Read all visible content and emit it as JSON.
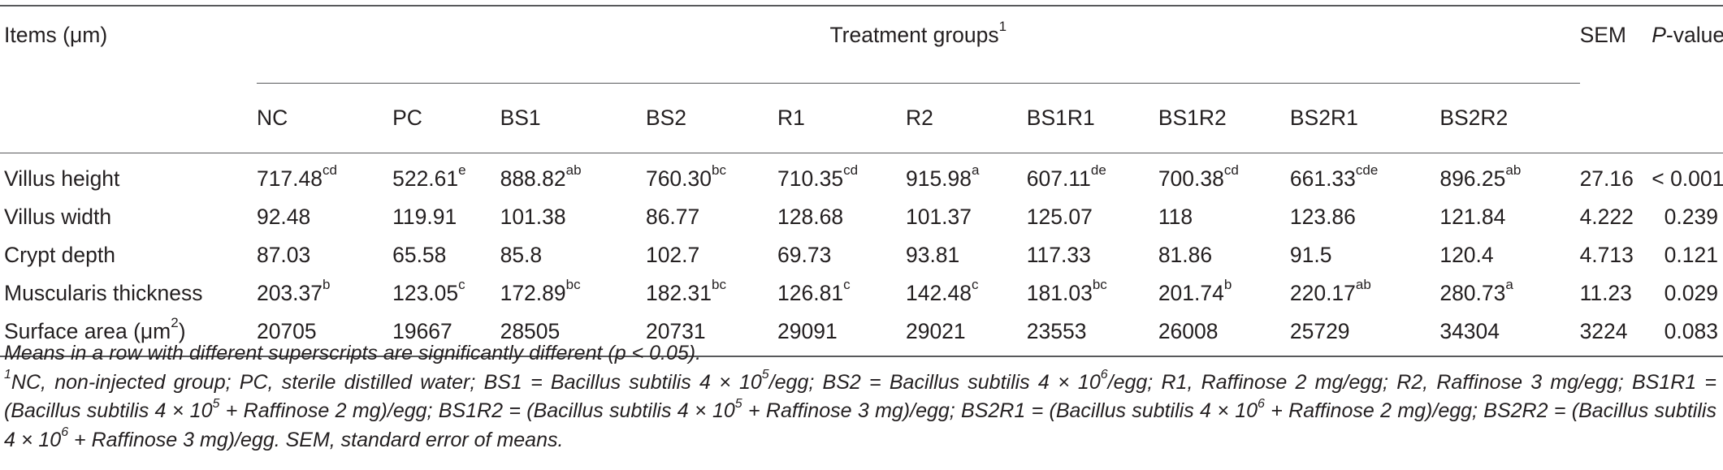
{
  "table": {
    "items_label": "Items (μm)",
    "group_label": "Treatment groups",
    "group_label_sup": "1",
    "sem_label": "SEM",
    "pvalue_label_italic": "P",
    "pvalue_label_rest": "-value",
    "groups": [
      "NC",
      "PC",
      "BS1",
      "BS2",
      "R1",
      "R2",
      "BS1R1",
      "BS1R2",
      "BS2R1",
      "BS2R2"
    ],
    "rows": [
      {
        "label": "Villus height",
        "label_sup": "",
        "cells": [
          {
            "v": "717.48",
            "s": "cd"
          },
          {
            "v": "522.61",
            "s": "e"
          },
          {
            "v": "888.82",
            "s": "ab"
          },
          {
            "v": "760.30",
            "s": "bc"
          },
          {
            "v": "710.35",
            "s": "cd"
          },
          {
            "v": "915.98",
            "s": "a"
          },
          {
            "v": "607.11",
            "s": "de"
          },
          {
            "v": "700.38",
            "s": "cd"
          },
          {
            "v": "661.33",
            "s": "cde"
          },
          {
            "v": "896.25",
            "s": "ab"
          }
        ],
        "sem": "27.16",
        "p": "< 0.001"
      },
      {
        "label": "Villus width",
        "label_sup": "",
        "cells": [
          {
            "v": "92.48",
            "s": ""
          },
          {
            "v": "119.91",
            "s": ""
          },
          {
            "v": "101.38",
            "s": ""
          },
          {
            "v": "86.77",
            "s": ""
          },
          {
            "v": "128.68",
            "s": ""
          },
          {
            "v": "101.37",
            "s": ""
          },
          {
            "v": "125.07",
            "s": ""
          },
          {
            "v": "118",
            "s": ""
          },
          {
            "v": "123.86",
            "s": ""
          },
          {
            "v": "121.84",
            "s": ""
          }
        ],
        "sem": "4.222",
        "p": "0.239"
      },
      {
        "label": "Crypt depth",
        "label_sup": "",
        "cells": [
          {
            "v": "87.03",
            "s": ""
          },
          {
            "v": "65.58",
            "s": ""
          },
          {
            "v": "85.8",
            "s": ""
          },
          {
            "v": "102.7",
            "s": ""
          },
          {
            "v": "69.73",
            "s": ""
          },
          {
            "v": "93.81",
            "s": ""
          },
          {
            "v": "117.33",
            "s": ""
          },
          {
            "v": "81.86",
            "s": ""
          },
          {
            "v": "91.5",
            "s": ""
          },
          {
            "v": "120.4",
            "s": ""
          }
        ],
        "sem": "4.713",
        "p": "0.121"
      },
      {
        "label": "Muscularis thickness",
        "label_sup": "",
        "cells": [
          {
            "v": "203.37",
            "s": "b"
          },
          {
            "v": "123.05",
            "s": "c"
          },
          {
            "v": "172.89",
            "s": "bc"
          },
          {
            "v": "182.31",
            "s": "bc"
          },
          {
            "v": "126.81",
            "s": "c"
          },
          {
            "v": "142.48",
            "s": "c"
          },
          {
            "v": "181.03",
            "s": "bc"
          },
          {
            "v": "201.74",
            "s": "b"
          },
          {
            "v": "220.17",
            "s": "ab"
          },
          {
            "v": "280.73",
            "s": "a"
          }
        ],
        "sem": "11.23",
        "p": "0.029"
      },
      {
        "label": "Surface area (μm",
        "label_sup": "2",
        "label_after": ")",
        "cells": [
          {
            "v": "20705",
            "s": ""
          },
          {
            "v": "19667",
            "s": ""
          },
          {
            "v": "28505",
            "s": ""
          },
          {
            "v": "20731",
            "s": ""
          },
          {
            "v": "29091",
            "s": ""
          },
          {
            "v": "29021",
            "s": ""
          },
          {
            "v": "23553",
            "s": ""
          },
          {
            "v": "26008",
            "s": ""
          },
          {
            "v": "25729",
            "s": ""
          },
          {
            "v": "34304",
            "s": ""
          }
        ],
        "sem": "3224",
        "p": "0.083"
      }
    ]
  },
  "notes": {
    "line1": "Means in a row with different superscripts are significantly different (p < 0.05).",
    "fn_marker": "1",
    "fn_parts": [
      {
        "t": "NC, non-injected group; PC, sterile distilled water; BS1 = Bacillus subtilis 4 × 10"
      },
      {
        "sup": "5"
      },
      {
        "t": "/egg; BS2 = Bacillus subtilis 4 × 10"
      },
      {
        "sup": "6"
      },
      {
        "t": "/egg; R1, Raffinose 2 mg/egg; R2, Raffinose 3 mg/egg; BS1R1 = (Bacillus subtilis 4 × 10"
      },
      {
        "sup": "5"
      },
      {
        "t": " + Raffinose 2 mg)/egg; BS1R2 = (Bacillus subtilis 4 × 10"
      },
      {
        "sup": "5"
      },
      {
        "t": " + Raffinose 3 mg)/egg; BS2R1 = (Bacillus subtilis 4 × 10"
      },
      {
        "sup": "6"
      },
      {
        "t": " + Raffinose 2 mg)/egg; BS2R2 = (Bacillus subtilis 4 × 10"
      },
      {
        "sup": "6"
      },
      {
        "t": " + Raffinose 3 mg)/egg. SEM, standard error of means."
      }
    ]
  }
}
